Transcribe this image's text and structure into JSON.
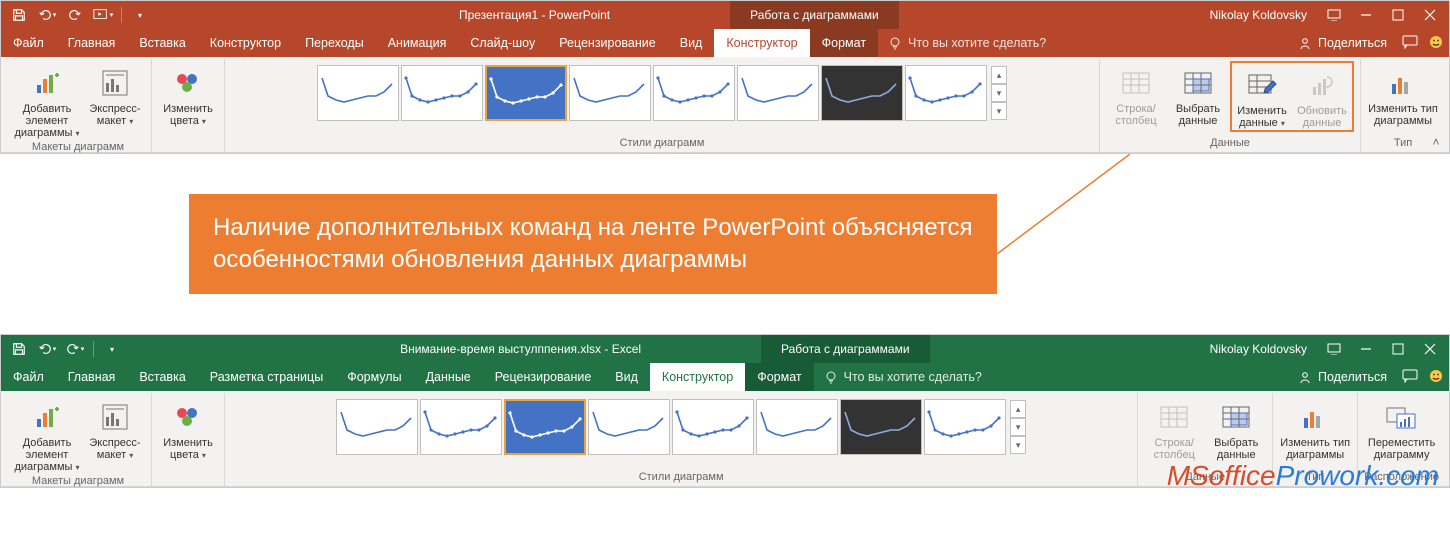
{
  "powerpoint": {
    "titlebar_color": "#b7472a",
    "context_color": "#8b3a22",
    "title": "Презентация1 - PowerPoint",
    "context_title": "Работа с диаграммами",
    "user": "Nikolay Koldovsky",
    "tabs": {
      "file": "Файл",
      "home": "Главная",
      "insert": "Вставка",
      "design": "Конструктор",
      "transitions": "Переходы",
      "animations": "Анимация",
      "slideshow": "Слайд-шоу",
      "review": "Рецензирование",
      "view": "Вид",
      "chart_design": "Конструктор",
      "format": "Формат"
    },
    "tellme": "Что вы хотите сделать?",
    "share": "Поделиться",
    "groups": {
      "layouts": "Макеты диаграмм",
      "styles": "Стили диаграмм",
      "data": "Данные",
      "type": "Тип"
    },
    "buttons": {
      "add_element": "Добавить элемент диаграммы",
      "quick_layout": "Экспресс-макет",
      "change_colors": "Изменить цвета",
      "switch_rowcol": "Строка/ столбец",
      "select_data": "Выбрать данные",
      "edit_data": "Изменить данные",
      "refresh_data": "Обновить данные",
      "change_type": "Изменить тип диаграммы"
    },
    "chart_styles_count": 8
  },
  "excel": {
    "titlebar_color": "#217346",
    "context_color": "#185c37",
    "title": "Внимание-время выстулппения.xlsx - Excel",
    "context_title": "Работа с диаграммами",
    "user": "Nikolay Koldovsky",
    "tabs": {
      "file": "Файл",
      "home": "Главная",
      "insert": "Вставка",
      "pagelayout": "Разметка страницы",
      "formulas": "Формулы",
      "data": "Данные",
      "review": "Рецензирование",
      "view": "Вид",
      "chart_design": "Конструктор",
      "format": "Формат"
    },
    "tellme": "Что вы хотите сделать?",
    "share": "Поделиться",
    "groups": {
      "layouts": "Макеты диаграмм",
      "styles": "Стили диаграмм",
      "data": "Данные",
      "type": "Тип",
      "location": "Расположение"
    },
    "buttons": {
      "add_element": "Добавить элемент диаграммы",
      "quick_layout": "Экспресс-макет",
      "change_colors": "Изменить цвета",
      "switch_rowcol": "Строка/ столбец",
      "select_data": "Выбрать данные",
      "change_type": "Изменить тип диаграммы",
      "move_chart": "Переместить диаграмму"
    }
  },
  "callout": {
    "text": "Наличие дополнительных команд на ленте PowerPoint объясняется особенностями обновления данных диаграммы",
    "bg": "#ed7d31",
    "border": "#ed7d31"
  },
  "watermark": {
    "part1": "MSoffice",
    "part2": "Prowork.com"
  },
  "thumb_colors": {
    "line_blue": "#4472c4",
    "line_white": "#ffffff",
    "bg_dark": "#333333"
  }
}
